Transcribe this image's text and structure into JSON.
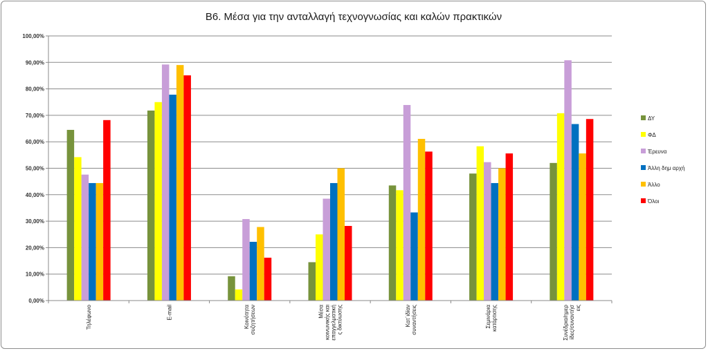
{
  "chart_data": {
    "type": "bar",
    "title": "B6. Μέσα για την ανταλλαγή τεχνογνωσίας και καλών πρακτικών",
    "xlabel": "",
    "ylabel": "",
    "ylim": [
      0,
      100
    ],
    "ytick_labels": [
      "0,00%",
      "10,00%",
      "20,00%",
      "30,00%",
      "40,00%",
      "50,00%",
      "60,00%",
      "70,00%",
      "80,00%",
      "90,00%",
      "100,00%"
    ],
    "grid": true,
    "legend_position": "right",
    "categories": [
      [
        "Τηλέφωνο"
      ],
      [
        "E-mail"
      ],
      [
        "Κοινότητα",
        "συζητήσεων"
      ],
      [
        "Μέσα",
        "κοινωνικής και",
        "επαγγελματική",
        "ς δικτύωσης"
      ],
      [
        "Κατ΄ιδίαν",
        "συναντήσεις"
      ],
      [
        "Σεμινάρια",
        "κατάρτισης"
      ],
      [
        "Συνέδρια/ημερ",
        "ίδες/συναντήσ",
        "εις"
      ]
    ],
    "series": [
      {
        "name": "ΔΥ",
        "color": "#77933c",
        "values": [
          64.5,
          71.8,
          9.2,
          14.5,
          43.5,
          48.0,
          52.0
        ]
      },
      {
        "name": "ΦΔ",
        "color": "#ffff00",
        "values": [
          54.2,
          75.0,
          4.2,
          25.0,
          41.7,
          58.3,
          70.8
        ]
      },
      {
        "name": "Έρευνα",
        "color": "#c89ed8",
        "values": [
          47.6,
          89.2,
          30.8,
          38.5,
          73.9,
          52.3,
          90.8
        ]
      },
      {
        "name": "Άλλη δημ αρχή",
        "color": "#0070c0",
        "values": [
          44.4,
          77.8,
          22.2,
          44.4,
          33.3,
          44.4,
          66.7
        ]
      },
      {
        "name": "Άλλο",
        "color": "#ffc000",
        "values": [
          44.4,
          89.0,
          27.8,
          50.0,
          61.1,
          50.0,
          55.6
        ]
      },
      {
        "name": "Όλοι",
        "color": "#ff0000",
        "values": [
          68.2,
          85.1,
          16.2,
          28.2,
          56.3,
          55.6,
          68.6
        ]
      }
    ]
  }
}
